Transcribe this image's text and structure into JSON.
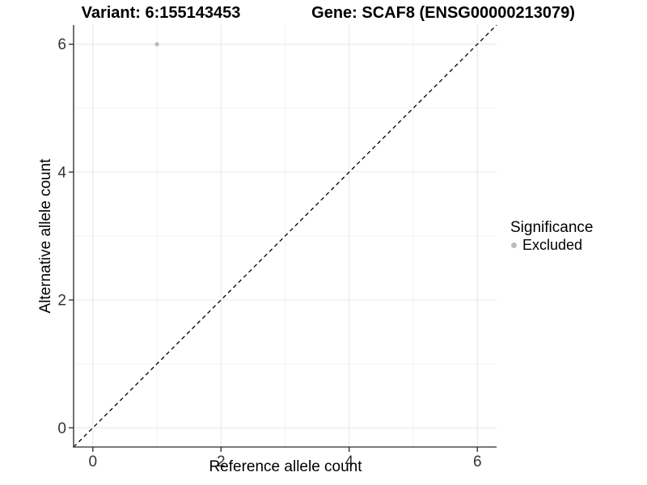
{
  "titles": {
    "variant": "Variant: 6:155143453",
    "gene": "Gene: SCAF8 (ENSG00000213079)"
  },
  "colors": {
    "background": "#ffffff",
    "grid_major": "#e6e6e6",
    "grid_minor": "#f2f2f2",
    "axis_line": "#4d4d4d",
    "tick_mark": "#333333",
    "tick_label": "#333333",
    "reference_line": "#000000",
    "point": "#bdbdbd"
  },
  "chart_data": {
    "type": "scatter",
    "title_left": "Variant: 6:155143453",
    "title_right": "Gene: SCAF8 (ENSG00000213079)",
    "xlabel": "Reference allele count",
    "ylabel": "Alternative allele count",
    "xlim": [
      -0.3,
      6.3
    ],
    "ylim": [
      -0.3,
      6.3
    ],
    "x_ticks": [
      0,
      2,
      4,
      6
    ],
    "y_ticks": [
      0,
      2,
      4,
      6
    ],
    "x_minor_ticks": [
      1,
      3,
      5
    ],
    "y_minor_ticks": [
      1,
      3,
      5
    ],
    "grid": true,
    "legend": {
      "title": "Significance",
      "position": "right",
      "items": [
        {
          "label": "Excluded",
          "color": "#bdbdbd"
        }
      ]
    },
    "series": [
      {
        "name": "Excluded",
        "color": "#bdbdbd",
        "points": [
          {
            "x": 1,
            "y": 6
          }
        ]
      }
    ],
    "reference_line": {
      "type": "identity",
      "equation": "y = x",
      "style": "dashed",
      "color": "#000000"
    }
  }
}
